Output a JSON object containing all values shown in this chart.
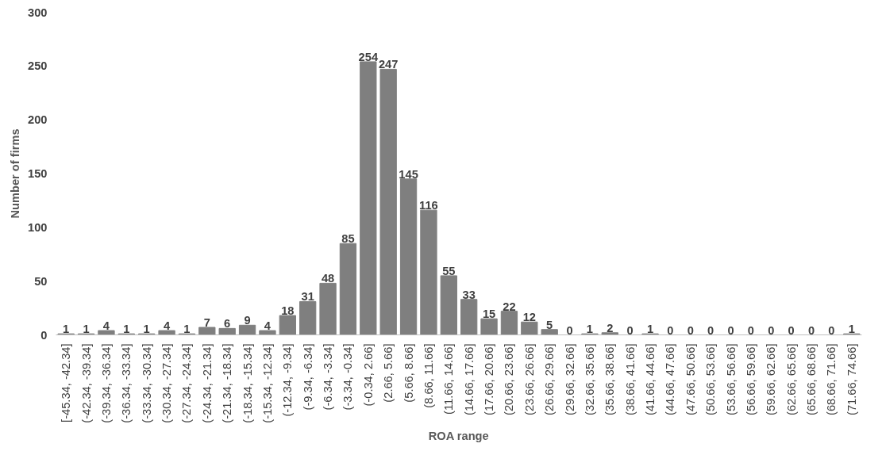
{
  "chart_data": {
    "type": "bar",
    "xlabel": "ROA range",
    "ylabel": "Number of firms",
    "categories": [
      "[-45.34, -42.34]",
      "(-42.34, -39.34]",
      "(-39.34, -36.34]",
      "(-36.34, -33.34]",
      "(-33.34, -30.34]",
      "(-30.34, -27.34]",
      "(-27.34, -24.34]",
      "(-24.34, -21.34]",
      "(-21.34, -18.34]",
      "(-18.34, -15.34]",
      "(-15.34, -12.34]",
      "(-12.34, -9.34]",
      "(-9.34, -6.34]",
      "(-6.34, -3.34]",
      "(-3.34, -0.34]",
      "(-0.34, 2.66]",
      "(2.66, 5.66]",
      "(5.66, 8.66]",
      "(8.66, 11.66]",
      "(11.66, 14.66]",
      "(14.66, 17.66]",
      "(17.66, 20.66]",
      "(20.66, 23.66]",
      "(23.66, 26.66]",
      "(26.66, 29.66]",
      "(29.66, 32.66]",
      "(32.66, 35.66]",
      "(35.66, 38.66]",
      "(38.66, 41.66]",
      "(41.66, 44.66]",
      "(44.66, 47.66]",
      "(47.66, 50.66]",
      "(50.66, 53.66]",
      "(53.66, 56.66]",
      "(56.66, 59.66]",
      "(59.66, 62.66]",
      "(62.66, 65.66]",
      "(65.66, 68.66]",
      "(68.66, 71.66]",
      "(71.66, 74.66]"
    ],
    "values": [
      1,
      1,
      4,
      1,
      1,
      4,
      1,
      7,
      6,
      9,
      4,
      18,
      31,
      48,
      85,
      254,
      247,
      145,
      116,
      55,
      33,
      15,
      22,
      12,
      5,
      0,
      1,
      2,
      0,
      1,
      0,
      0,
      0,
      0,
      0,
      0,
      0,
      0,
      0,
      1
    ],
    "color": "#7f7f7f",
    "ylim": [
      0,
      300
    ],
    "yticks": [
      0,
      50,
      100,
      150,
      200,
      250,
      300
    ],
    "data_labels": true,
    "grid": false
  }
}
